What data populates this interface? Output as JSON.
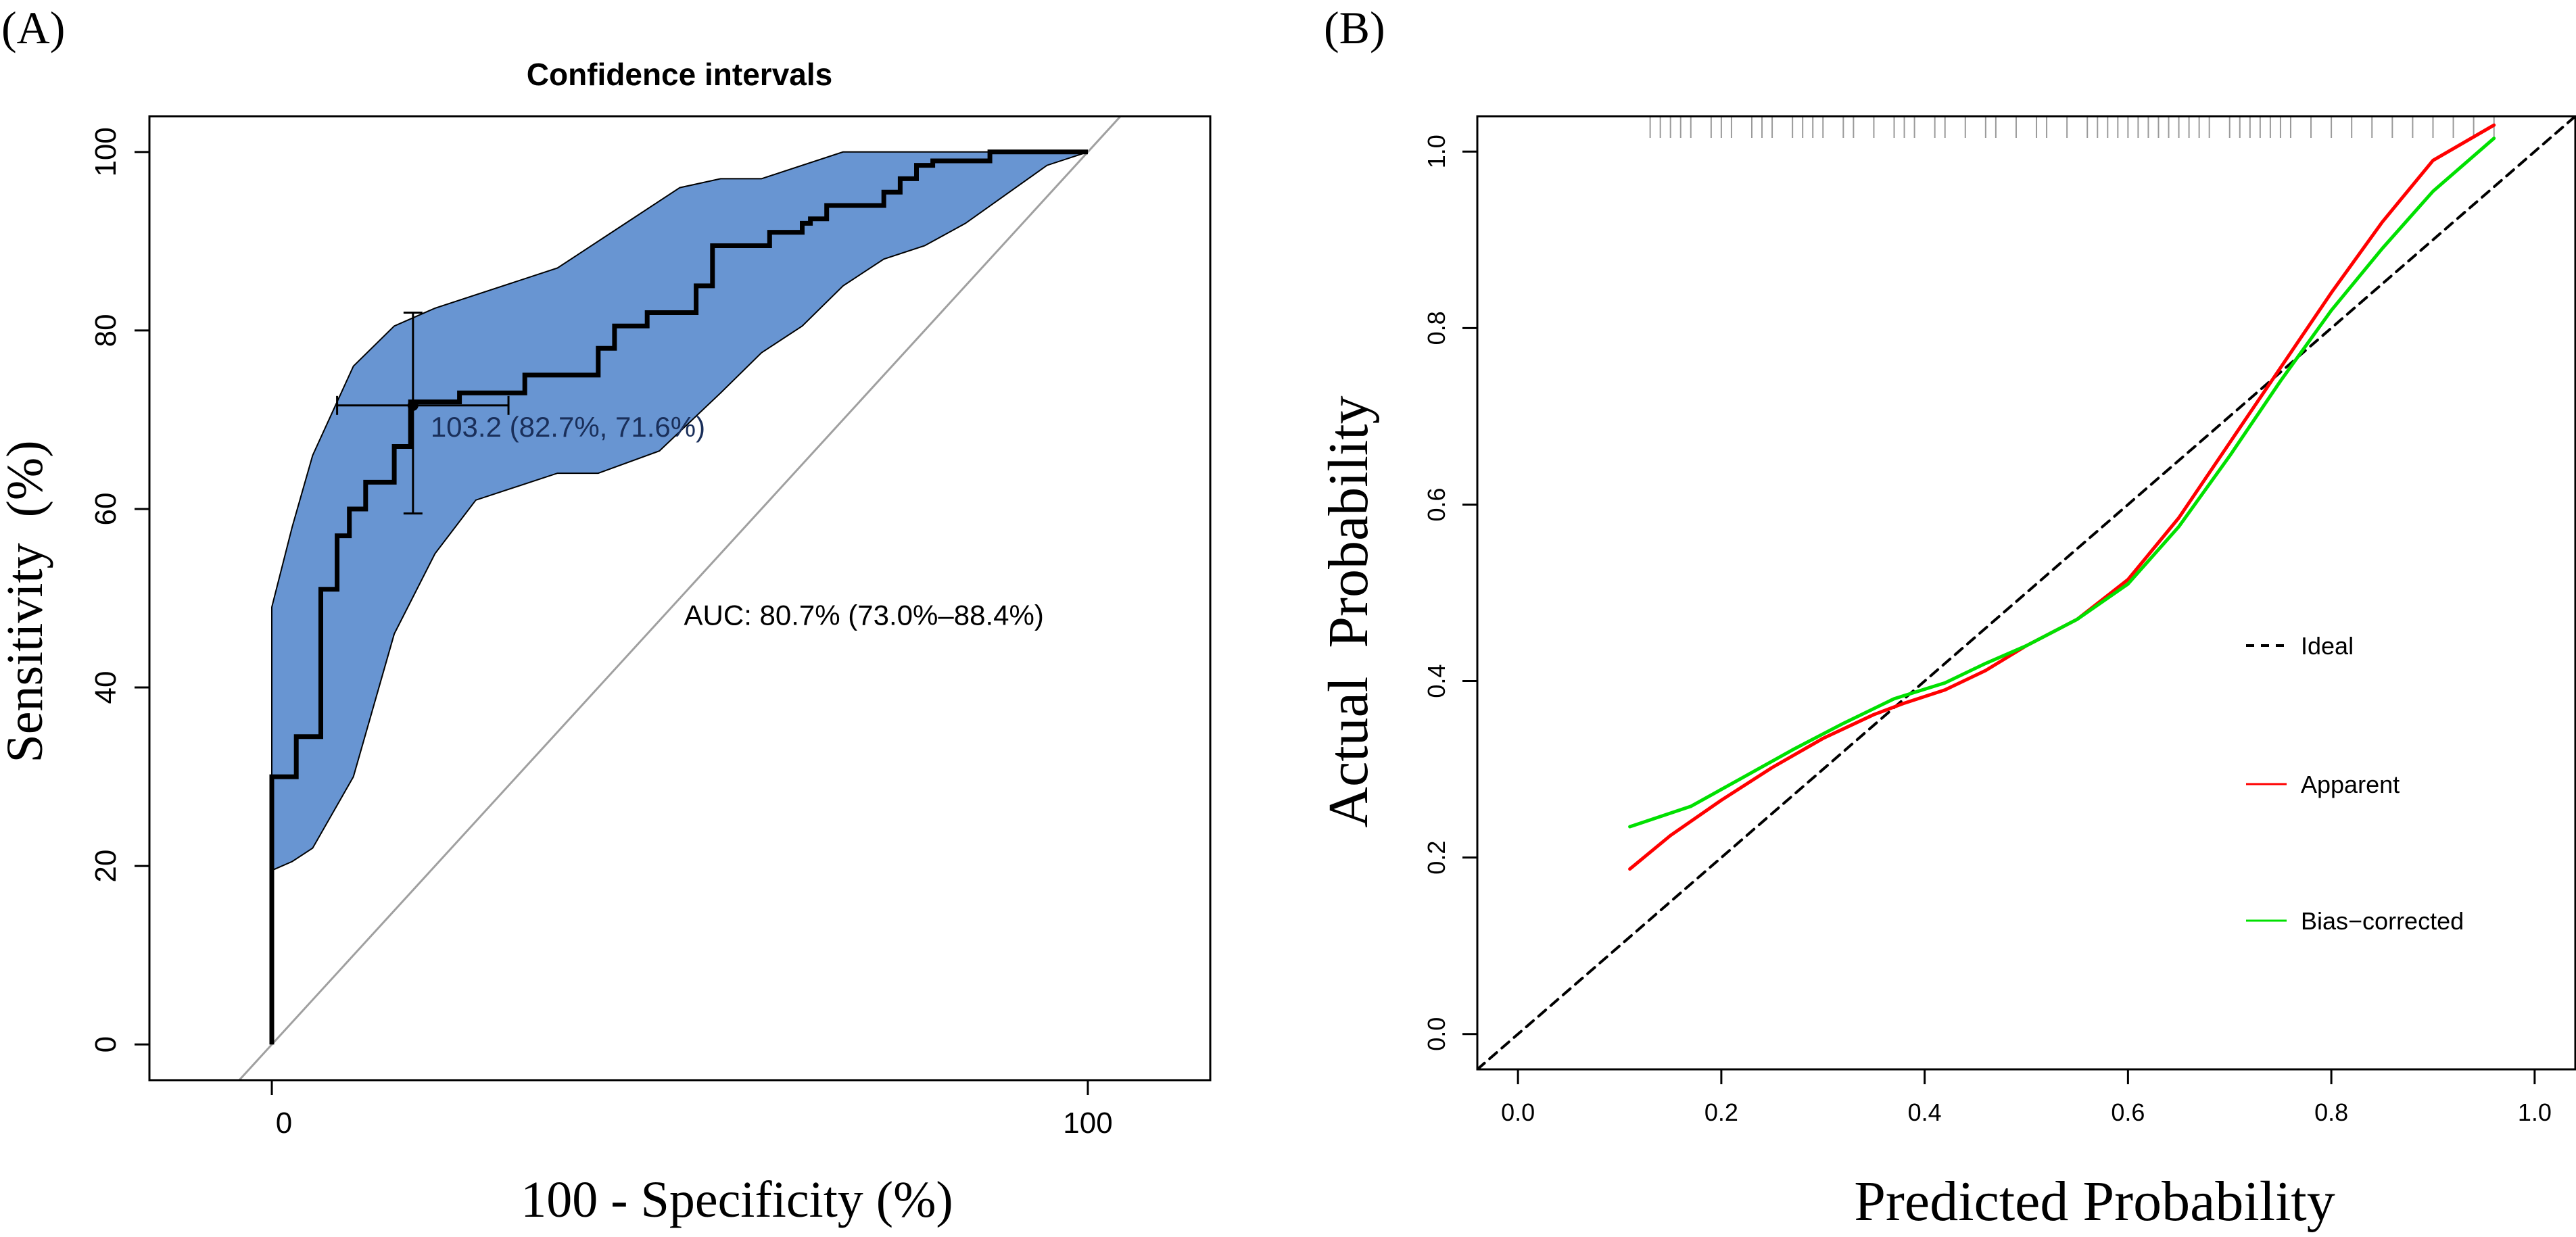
{
  "panels": {
    "a": {
      "tag": "(A)"
    },
    "b": {
      "tag": "(B)"
    }
  },
  "chart_data": [
    {
      "type": "line",
      "title": "Confidence intervals",
      "xlabel": "100 - Specificity (%)",
      "ylabel": "Sensitivity  (%)",
      "xlim": [
        -15,
        115
      ],
      "ylim": [
        -4,
        104
      ],
      "x_ticks": [
        0,
        100
      ],
      "y_ticks": [
        0,
        20,
        40,
        60,
        80,
        100
      ],
      "grid": false,
      "reference_line": {
        "from": [
          -4,
          -4
        ],
        "to": [
          104,
          104
        ],
        "color": "#a0a0a0"
      },
      "ci_band": {
        "color": "#6895d2",
        "upper": [
          [
            0,
            19.5
          ],
          [
            0,
            49
          ],
          [
            2.5,
            58
          ],
          [
            5,
            66
          ],
          [
            10,
            76
          ],
          [
            15,
            80.5
          ],
          [
            20,
            82.5
          ],
          [
            35,
            87
          ],
          [
            50,
            96
          ],
          [
            55,
            97
          ],
          [
            60,
            97
          ],
          [
            70,
            100
          ],
          [
            100,
            100
          ]
        ],
        "lower": [
          [
            100,
            100
          ],
          [
            95,
            98.5
          ],
          [
            85,
            92
          ],
          [
            80,
            89.5
          ],
          [
            75,
            88
          ],
          [
            70,
            85
          ],
          [
            65,
            80.5
          ],
          [
            60,
            77.5
          ],
          [
            55,
            73
          ],
          [
            47.5,
            66.5
          ],
          [
            40,
            64
          ],
          [
            35,
            64
          ],
          [
            25,
            61
          ],
          [
            20,
            55
          ],
          [
            15,
            46
          ],
          [
            10,
            30
          ],
          [
            5,
            22
          ],
          [
            2.5,
            20.5
          ],
          [
            0,
            19.5
          ]
        ]
      },
      "series": [
        {
          "name": "ROC",
          "color": "#000000",
          "x": [
            0,
            0,
            3,
            3,
            6,
            6,
            8,
            8,
            9.5,
            9.5,
            11.5,
            11.5,
            15,
            15,
            17,
            17,
            23,
            23,
            31,
            31,
            40,
            40,
            42,
            42,
            46,
            46,
            52,
            52,
            54,
            54,
            61,
            61,
            65,
            65,
            66,
            66,
            68,
            68,
            75,
            75,
            77,
            77,
            79,
            79,
            81,
            81,
            88,
            88,
            100
          ],
          "y": [
            0,
            30,
            30,
            34.5,
            34.5,
            51,
            51,
            57,
            57,
            60,
            60,
            63,
            63,
            67,
            67,
            72,
            72,
            73,
            73,
            75,
            75,
            78,
            78,
            80.5,
            80.5,
            82,
            82,
            85,
            85,
            89.5,
            89.5,
            91,
            91,
            92,
            92,
            92.5,
            92.5,
            94,
            94,
            95.5,
            95.5,
            97,
            97,
            98.5,
            98.5,
            99,
            99,
            100,
            100
          ]
        }
      ],
      "threshold_point": {
        "x": 17.3,
        "y": 71.6,
        "label": "103.2 (82.7%, 71.6%)",
        "x_error": [
          8,
          29
        ],
        "y_error": [
          59.5,
          82
        ]
      },
      "annotation": {
        "text": "AUC: 80.7% (73.0%–88.4%)",
        "x": 50.5,
        "y": 47
      }
    },
    {
      "type": "line",
      "title": "",
      "xlabel": "Predicted Probability",
      "ylabel": "Actual  Probability",
      "xlim": [
        -0.04,
        1.04
      ],
      "ylim": [
        -0.04,
        1.04
      ],
      "x_ticks": [
        0.0,
        0.2,
        0.4,
        0.6,
        0.8,
        1.0
      ],
      "x_tick_labels": [
        "0.0",
        "0.2",
        "0.4",
        "0.6",
        "0.8",
        "1.0"
      ],
      "y_ticks": [
        0.0,
        0.2,
        0.4,
        0.6,
        0.8,
        1.0
      ],
      "y_tick_labels": [
        "0.0",
        "0.2",
        "0.4",
        "0.6",
        "0.8",
        "1.0"
      ],
      "grid": false,
      "legend_position": "right",
      "series": [
        {
          "name": "Ideal",
          "color": "#000000",
          "dash": true,
          "x": [
            -0.04,
            1.04
          ],
          "y": [
            -0.04,
            1.04
          ]
        },
        {
          "name": "Apparent",
          "color": "#ff0000",
          "dash": false,
          "x": [
            0.11,
            0.15,
            0.2,
            0.25,
            0.3,
            0.35,
            0.38,
            0.42,
            0.46,
            0.5,
            0.55,
            0.6,
            0.65,
            0.7,
            0.75,
            0.8,
            0.85,
            0.9,
            0.96
          ],
          "y": [
            0.187,
            0.225,
            0.265,
            0.302,
            0.335,
            0.362,
            0.375,
            0.39,
            0.412,
            0.44,
            0.47,
            0.515,
            0.585,
            0.67,
            0.755,
            0.84,
            0.92,
            0.99,
            1.03
          ]
        },
        {
          "name": "Bias−corrected",
          "color": "#00e000",
          "dash": false,
          "x": [
            0.11,
            0.17,
            0.22,
            0.27,
            0.32,
            0.37,
            0.42,
            0.46,
            0.5,
            0.55,
            0.6,
            0.65,
            0.7,
            0.75,
            0.8,
            0.85,
            0.9,
            0.96
          ],
          "y": [
            0.235,
            0.258,
            0.29,
            0.322,
            0.352,
            0.38,
            0.398,
            0.42,
            0.44,
            0.47,
            0.51,
            0.575,
            0.655,
            0.74,
            0.82,
            0.89,
            0.955,
            1.015
          ]
        }
      ],
      "rug_x": [
        0.13,
        0.14,
        0.15,
        0.16,
        0.17,
        0.19,
        0.2,
        0.21,
        0.23,
        0.24,
        0.25,
        0.27,
        0.28,
        0.29,
        0.3,
        0.32,
        0.33,
        0.35,
        0.37,
        0.38,
        0.39,
        0.41,
        0.42,
        0.44,
        0.46,
        0.47,
        0.49,
        0.51,
        0.52,
        0.54,
        0.56,
        0.57,
        0.58,
        0.59,
        0.6,
        0.61,
        0.62,
        0.63,
        0.64,
        0.65,
        0.66,
        0.67,
        0.68,
        0.7,
        0.71,
        0.72,
        0.73,
        0.74,
        0.75,
        0.76,
        0.78,
        0.8,
        0.82,
        0.84,
        0.86,
        0.88,
        0.9,
        0.92,
        0.94,
        0.96
      ]
    }
  ]
}
